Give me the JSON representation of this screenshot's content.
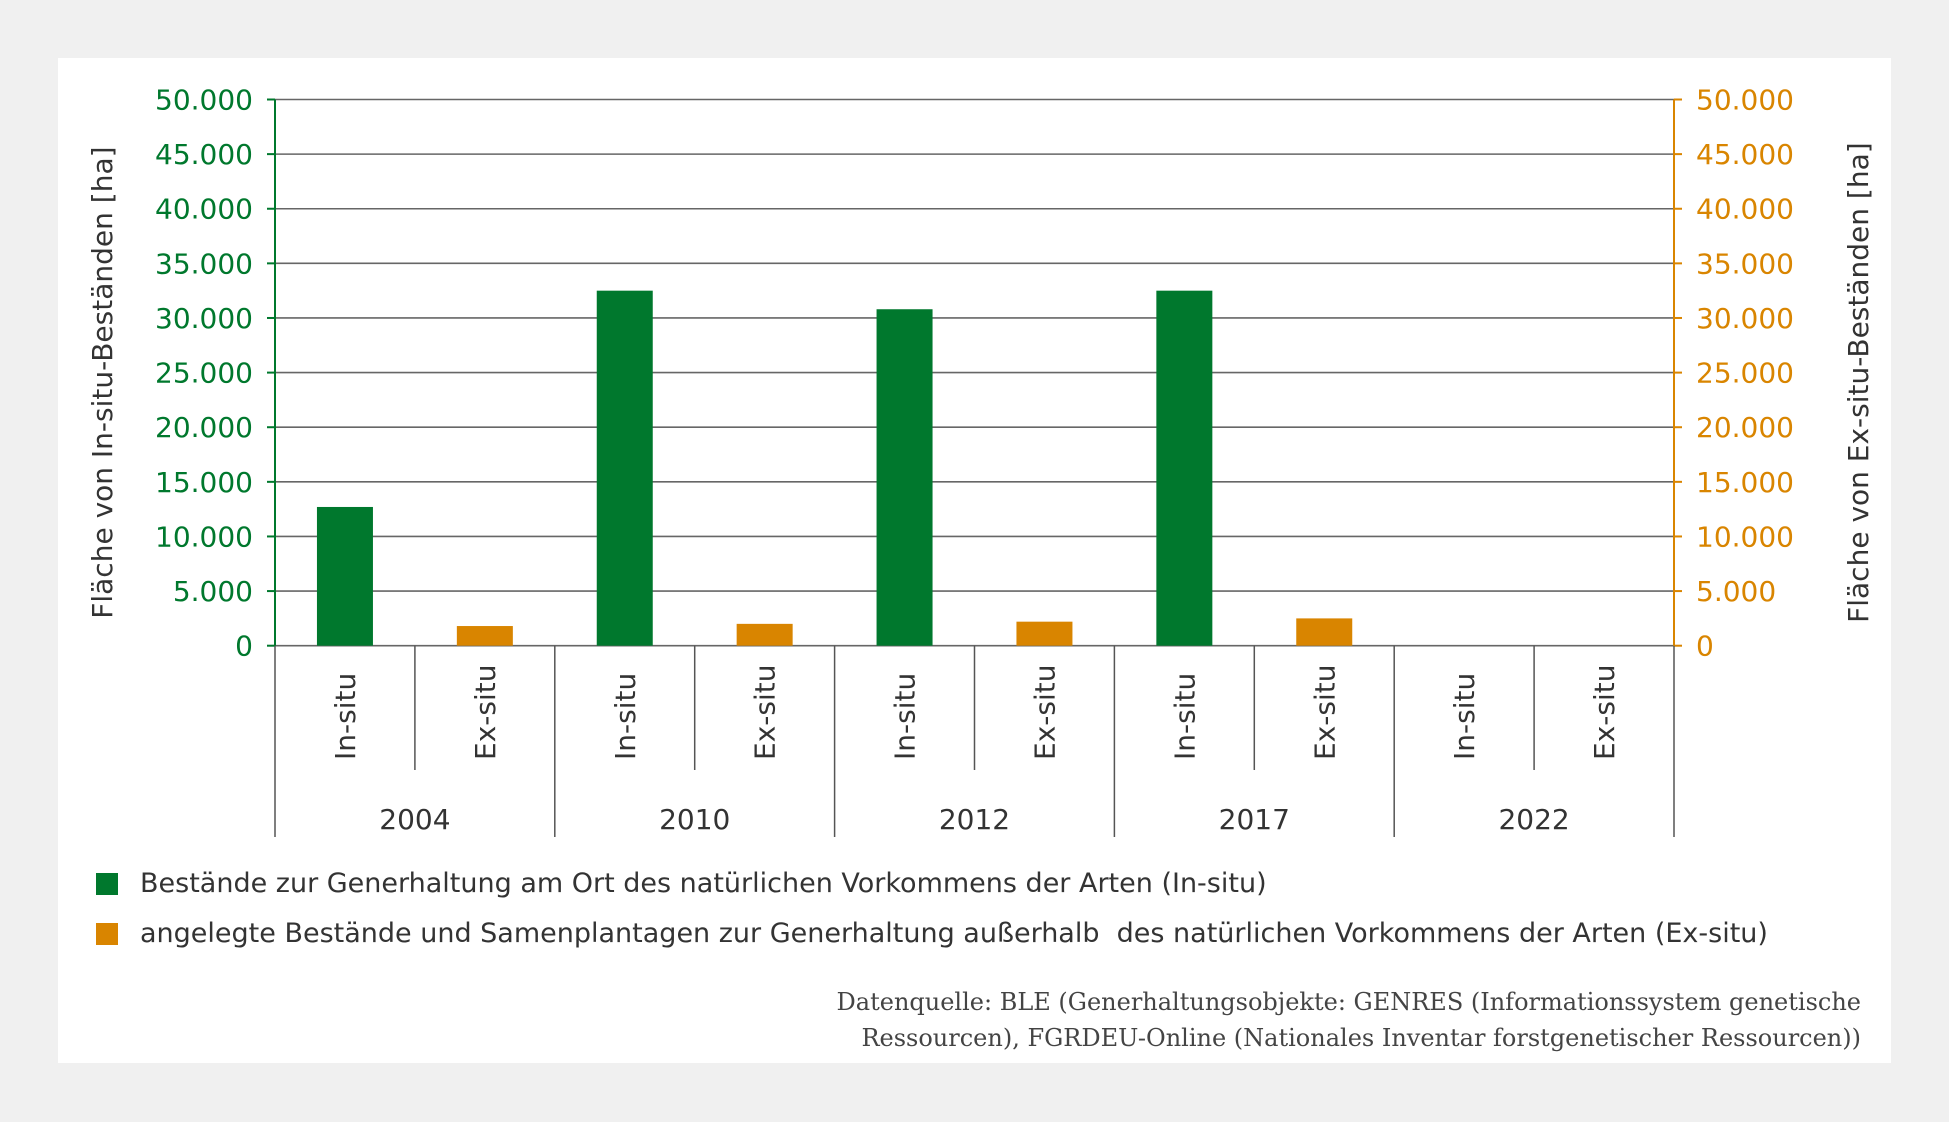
{
  "chart_data": {
    "type": "bar",
    "ylabel_left": "Fläche von In-situ-Beständen [ha]",
    "ylabel_right": "Fläche  von Ex-situ-Beständen [ha]",
    "ylim": [
      0,
      50000
    ],
    "yticks": [
      "0",
      "5.000",
      "10.000",
      "15.000",
      "20.000",
      "25.000",
      "30.000",
      "35.000",
      "40.000",
      "45.000",
      "50.000"
    ],
    "groups": [
      "2004",
      "2010",
      "2012",
      "2017",
      "2022"
    ],
    "subcategories": [
      "In-situ",
      "Ex-situ"
    ],
    "series": [
      {
        "name": "Bestände zur Generhaltung am Ort des natürlichen Vorkommens der Arten (In-situ)",
        "color": "#00782d",
        "values": [
          12700,
          32500,
          30800,
          32500,
          null
        ]
      },
      {
        "name": "angelegte Bestände und Samenplantagen zur Generhaltung außerhalb  des natürlichen Vorkommens der Arten (Ex-situ)",
        "color": "#d98500",
        "values": [
          1800,
          2000,
          2200,
          2500,
          null
        ]
      }
    ],
    "grid": true,
    "legend": "bottom-left"
  },
  "source": {
    "line1": "Datenquelle: BLE (Generhaltungsobjekte: GENRES (Informationssystem genetische",
    "line2": "Ressourcen), FGRDEU-Online (Nationales Inventar forstgenetischer Ressourcen))"
  }
}
